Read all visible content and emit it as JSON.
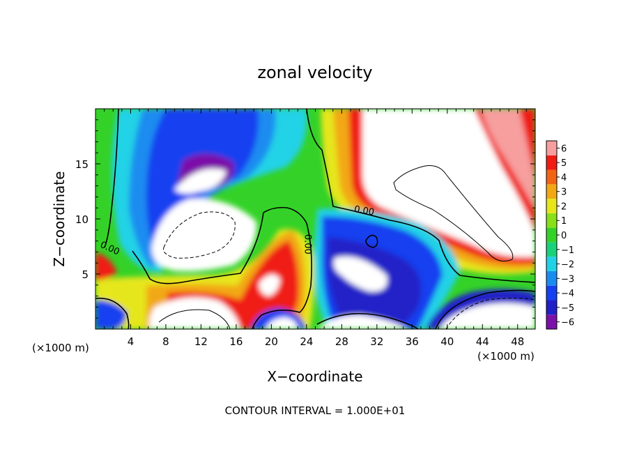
{
  "chart_data": {
    "type": "heatmap",
    "title": "zonal velocity",
    "xlabel": "X−coordinate",
    "ylabel": "Z−coordinate",
    "x_unit_left": "(×1000 m)",
    "x_unit_right": "(×1000 m)",
    "footer": "CONTOUR INTERVAL = 1.000E+01",
    "xlim": [
      0,
      50
    ],
    "ylim": [
      0,
      20
    ],
    "x_ticks": [
      4,
      8,
      12,
      16,
      20,
      24,
      28,
      32,
      36,
      40,
      44,
      48
    ],
    "x_tick_labels": [
      "4",
      "8",
      "12",
      "16",
      "20",
      "24",
      "28",
      "32",
      "36",
      "40",
      "44",
      "48"
    ],
    "y_ticks": [
      5,
      10,
      15
    ],
    "y_tick_labels": [
      "5",
      "10",
      "15"
    ],
    "colorbar": {
      "levels": [
        -6,
        -5,
        -4,
        -3,
        -2,
        -1,
        0,
        1,
        2,
        3,
        4,
        5,
        6
      ],
      "labels": [
        "−6",
        "−5",
        "−4",
        "−3",
        "−2",
        "−1",
        "0",
        "1",
        "2",
        "3",
        "4",
        "5",
        "6"
      ],
      "colors": [
        "#7b10a8",
        "#2020c8",
        "#1440f0",
        "#1a8cf0",
        "#20d2e6",
        "#18d27a",
        "#34d228",
        "#88e018",
        "#e6e61a",
        "#f2a814",
        "#f26414",
        "#f01c14",
        "#f79e9e"
      ]
    },
    "contour_labels": [
      {
        "text": "0.00",
        "x": 1.5,
        "y": 7.1
      },
      {
        "text": "0.00",
        "x": 23.8,
        "y": 7.7
      },
      {
        "text": "0.00",
        "x": 30.5,
        "y": 10.5
      }
    ]
  }
}
